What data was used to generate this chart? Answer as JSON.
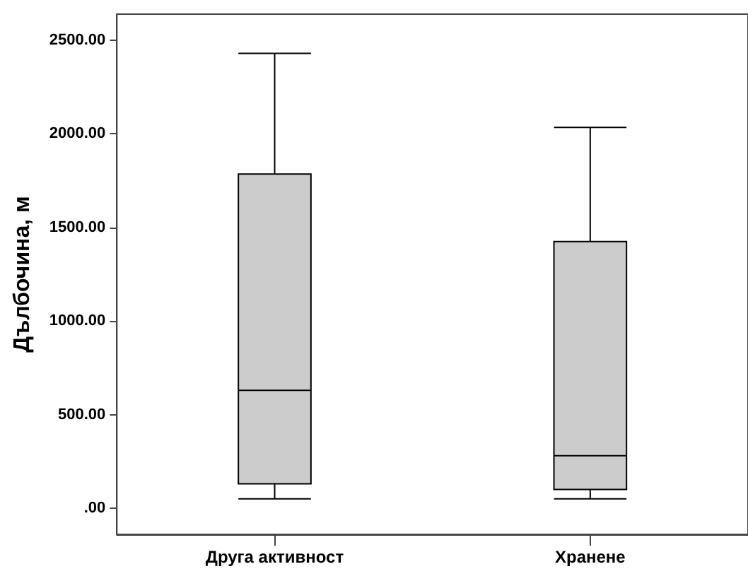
{
  "chart_data": {
    "type": "box",
    "ylabel": "Дълбочина, м",
    "categories": [
      "Друга активност",
      "Хранене"
    ],
    "boxes": [
      {
        "low": 50,
        "q1": 130,
        "median": 630,
        "q3": 1785,
        "high": 2430
      },
      {
        "low": 50,
        "q1": 100,
        "median": 280,
        "q3": 1425,
        "high": 2035
      }
    ],
    "color": "#cccccc",
    "ylim": [
      -140,
      2640
    ],
    "yticks": [
      {
        "value": 0,
        "label": ".00"
      },
      {
        "value": 500,
        "label": "500.00"
      },
      {
        "value": 1000,
        "label": "1000.00"
      },
      {
        "value": 1500,
        "label": "1500.00"
      },
      {
        "value": 2000,
        "label": "2000.00"
      },
      {
        "value": 2500,
        "label": "2500.00"
      }
    ],
    "grid": false
  }
}
